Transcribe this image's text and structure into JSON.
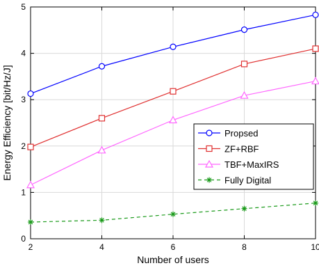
{
  "chart_data": {
    "type": "line",
    "title": "",
    "xlabel": "Number of users",
    "ylabel": "Energy Efficiency [bit/Hz/J]",
    "xlim": [
      2,
      10
    ],
    "ylim": [
      0,
      5
    ],
    "xticks": [
      2,
      4,
      6,
      8,
      10
    ],
    "yticks": [
      0,
      1,
      2,
      3,
      4,
      5
    ],
    "grid": true,
    "legend_position": "right",
    "x": [
      2,
      4,
      6,
      8,
      10
    ],
    "series": [
      {
        "name": "Propsed",
        "values": [
          3.13,
          3.72,
          4.14,
          4.51,
          4.83
        ],
        "color": "#0000ff",
        "marker": "circle",
        "dash": "solid"
      },
      {
        "name": "ZF+RBF",
        "values": [
          1.98,
          2.6,
          3.18,
          3.77,
          4.1
        ],
        "color": "#e03030",
        "marker": "square",
        "dash": "solid"
      },
      {
        "name": "TBF+MaxIRS",
        "values": [
          1.16,
          1.91,
          2.56,
          3.09,
          3.4
        ],
        "color": "#ff66ff",
        "marker": "triangle",
        "dash": "solid"
      },
      {
        "name": "Fully Digital",
        "values": [
          0.36,
          0.4,
          0.53,
          0.65,
          0.77
        ],
        "color": "#1a9a1a",
        "marker": "asterisk",
        "dash": "dashed"
      }
    ]
  }
}
